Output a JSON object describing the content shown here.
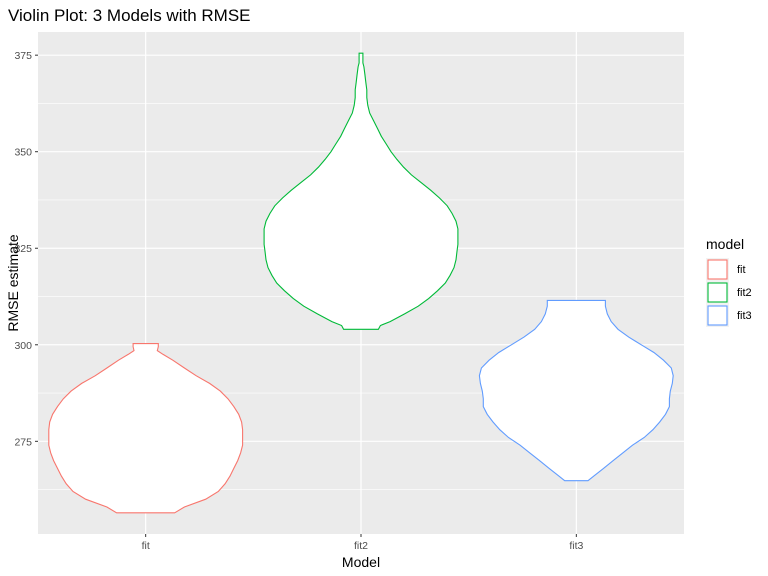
{
  "chart_data": {
    "type": "violin",
    "title": "Violin Plot: 3 Models with RMSE",
    "xlabel": "Model",
    "ylabel": "RMSE estimate",
    "categories": [
      "fit",
      "fit2",
      "fit3"
    ],
    "y_ticks": [
      275,
      300,
      325,
      350,
      375
    ],
    "ylim": [
      251,
      381
    ],
    "grid": true,
    "legend": {
      "title": "model",
      "placement": "right",
      "entries": [
        "fit",
        "fit2",
        "fit3"
      ]
    },
    "series": [
      {
        "name": "fit",
        "color": "#F8766D",
        "min": 256.5,
        "max": 300.3,
        "profile": [
          [
            256.5,
            0.3
          ],
          [
            258,
            0.4
          ],
          [
            260,
            0.62
          ],
          [
            262,
            0.75
          ],
          [
            264,
            0.82
          ],
          [
            266,
            0.87
          ],
          [
            268,
            0.91
          ],
          [
            270,
            0.95
          ],
          [
            272,
            0.98
          ],
          [
            274,
            1.0
          ],
          [
            276,
            1.0
          ],
          [
            278,
            1.0
          ],
          [
            280,
            0.99
          ],
          [
            282,
            0.96
          ],
          [
            284,
            0.91
          ],
          [
            286,
            0.85
          ],
          [
            288,
            0.77
          ],
          [
            290,
            0.66
          ],
          [
            292,
            0.52
          ],
          [
            294,
            0.4
          ],
          [
            296,
            0.28
          ],
          [
            297.5,
            0.18
          ],
          [
            298.5,
            0.12
          ],
          [
            299.5,
            0.13
          ],
          [
            300.3,
            0.13
          ]
        ]
      },
      {
        "name": "fit2",
        "color": "#00BA38",
        "min": 304,
        "max": 375.5,
        "profile": [
          [
            304,
            0.18
          ],
          [
            305,
            0.2
          ],
          [
            306,
            0.3
          ],
          [
            308,
            0.45
          ],
          [
            310,
            0.59
          ],
          [
            312,
            0.7
          ],
          [
            314,
            0.79
          ],
          [
            316,
            0.87
          ],
          [
            318,
            0.92
          ],
          [
            320,
            0.96
          ],
          [
            322,
            0.98
          ],
          [
            324,
            0.99
          ],
          [
            326,
            1.0
          ],
          [
            328,
            1.0
          ],
          [
            330,
            1.0
          ],
          [
            332,
            0.98
          ],
          [
            334,
            0.94
          ],
          [
            336,
            0.89
          ],
          [
            338,
            0.81
          ],
          [
            340,
            0.72
          ],
          [
            342,
            0.62
          ],
          [
            344,
            0.52
          ],
          [
            346,
            0.44
          ],
          [
            348,
            0.37
          ],
          [
            350,
            0.31
          ],
          [
            352,
            0.26
          ],
          [
            354,
            0.21
          ],
          [
            356,
            0.17
          ],
          [
            358,
            0.13
          ],
          [
            360,
            0.09
          ],
          [
            362,
            0.07
          ],
          [
            364,
            0.06
          ],
          [
            366,
            0.06
          ],
          [
            368,
            0.05
          ],
          [
            370,
            0.04
          ],
          [
            372,
            0.03
          ],
          [
            373,
            0.02
          ],
          [
            374,
            0.02
          ],
          [
            375.5,
            0.02
          ]
        ]
      },
      {
        "name": "fit3",
        "color": "#619CFF",
        "min": 264.8,
        "max": 311.5,
        "profile": [
          [
            264.8,
            0.12
          ],
          [
            266,
            0.18
          ],
          [
            268,
            0.28
          ],
          [
            270,
            0.38
          ],
          [
            272,
            0.48
          ],
          [
            274,
            0.58
          ],
          [
            276,
            0.7
          ],
          [
            278,
            0.79
          ],
          [
            280,
            0.86
          ],
          [
            282,
            0.92
          ],
          [
            284,
            0.96
          ],
          [
            286,
            0.96
          ],
          [
            288,
            0.97
          ],
          [
            290,
            0.99
          ],
          [
            292,
            1.0
          ],
          [
            294,
            0.98
          ],
          [
            296,
            0.9
          ],
          [
            298,
            0.8
          ],
          [
            300,
            0.67
          ],
          [
            302,
            0.54
          ],
          [
            304,
            0.43
          ],
          [
            306,
            0.36
          ],
          [
            308,
            0.32
          ],
          [
            310,
            0.3
          ],
          [
            311.5,
            0.3
          ]
        ]
      }
    ]
  }
}
